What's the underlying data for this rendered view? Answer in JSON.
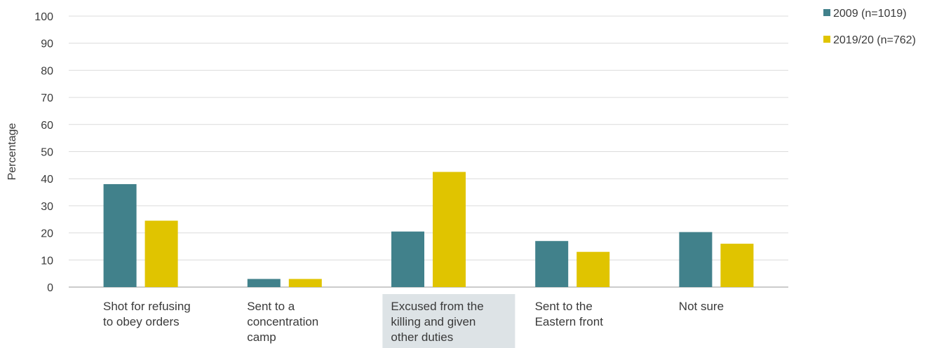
{
  "chart_data": {
    "type": "bar",
    "ylabel": "Percentage",
    "xlabel": "",
    "ylim": [
      0,
      100
    ],
    "yticks": [
      "0",
      "10",
      "20",
      "30",
      "40",
      "50",
      "60",
      "70",
      "80",
      "90",
      "100"
    ],
    "grid": true,
    "legend_position": "top-right",
    "categories": [
      [
        "Shot for refusing",
        "to obey orders"
      ],
      [
        "Sent to a",
        "concentration",
        "camp"
      ],
      [
        "Excused from the",
        "killing and given",
        "other duties"
      ],
      [
        "Sent to the",
        "Eastern front"
      ],
      [
        "Not sure"
      ]
    ],
    "highlighted_category": 2,
    "highlight_color": "#dde3e6",
    "series": [
      {
        "name": "2009 (n=1019)",
        "color": "#41818b",
        "values": [
          38,
          3,
          20.5,
          17,
          20.3
        ]
      },
      {
        "name": "2019/20 (n=762)",
        "color": "#e0c400",
        "values": [
          24.5,
          3,
          42.5,
          13,
          16
        ]
      }
    ]
  }
}
